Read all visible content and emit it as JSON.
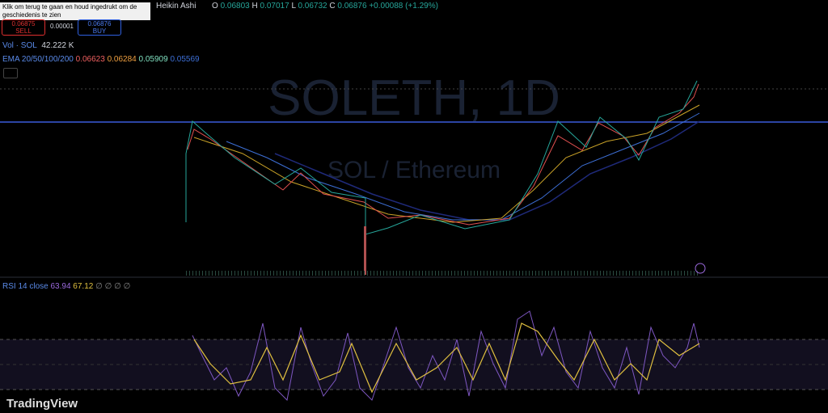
{
  "tooltip": "Klik om terug te gaan en houd ingedrukt om de geschiedenis te zien",
  "header": {
    "chart_style": "Heikin Ashi",
    "ohlc": [
      {
        "label": "O",
        "value": "0.06803"
      },
      {
        "label": "H",
        "value": "0.07017"
      },
      {
        "label": "L",
        "value": "0.06732"
      },
      {
        "label": "C",
        "value": "0.06876"
      }
    ],
    "change": "+0.00088 (+1.29%)"
  },
  "trade": {
    "sell_price": "0.06875",
    "sell_label": "SELL",
    "spread": "0.00001",
    "buy_price": "0.06876",
    "buy_label": "BUY"
  },
  "volume": {
    "label": "Vol · SOL",
    "value": "42.222 K"
  },
  "ema": {
    "label": "EMA 20/50/100/200",
    "values": [
      "0.06623",
      "0.06284",
      "0.05909",
      "0.05569"
    ]
  },
  "watermark": {
    "title": "SOLETH, 1D",
    "subtitle": "SOL / Ethereum"
  },
  "rsi": {
    "label": "RSI 14 close",
    "values": [
      "63.94",
      "67.12"
    ],
    "empty": "∅ ∅ ∅ ∅"
  },
  "brand": "TradingView"
}
